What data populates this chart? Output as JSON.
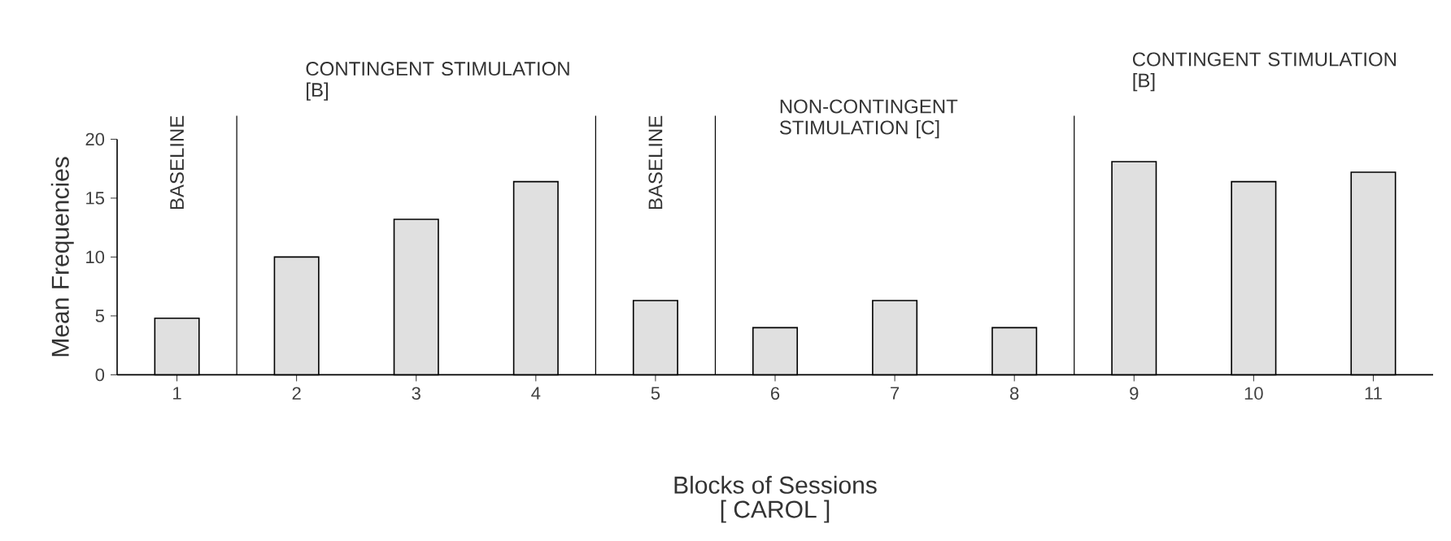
{
  "chart_data": {
    "type": "bar",
    "x": [
      1,
      2,
      3,
      4,
      5,
      6,
      7,
      8,
      9,
      10,
      11
    ],
    "values": [
      4.8,
      10,
      13.2,
      16.4,
      6.3,
      4,
      6.3,
      4,
      18.1,
      16.4,
      17.2
    ],
    "color": "#e0e0e0",
    "xlim": [
      0.5,
      11.5
    ],
    "xticks": [
      1,
      2,
      3,
      4,
      5,
      6,
      7,
      8,
      9,
      10,
      11
    ],
    "ylim": [
      0,
      20
    ],
    "yticks": [
      0,
      5,
      10,
      15,
      20
    ],
    "xlabel": "Blocks of Sessions",
    "ylabel": "Mean Frequencies",
    "ref_lines": [
      {
        "axis": "x",
        "value": 1.5
      },
      {
        "axis": "x",
        "value": 4.5
      },
      {
        "axis": "x",
        "value": 5.5
      },
      {
        "axis": "x",
        "value": 8.5
      }
    ],
    "annotations": [
      "BASELINE",
      "CONTINGENT STIMULATION [B]",
      "BASELINE",
      "NON-CONTINGENT STIMULATION [C]",
      "CONTINGENT STIMULATION [B]",
      "[ CAROL ]"
    ]
  }
}
